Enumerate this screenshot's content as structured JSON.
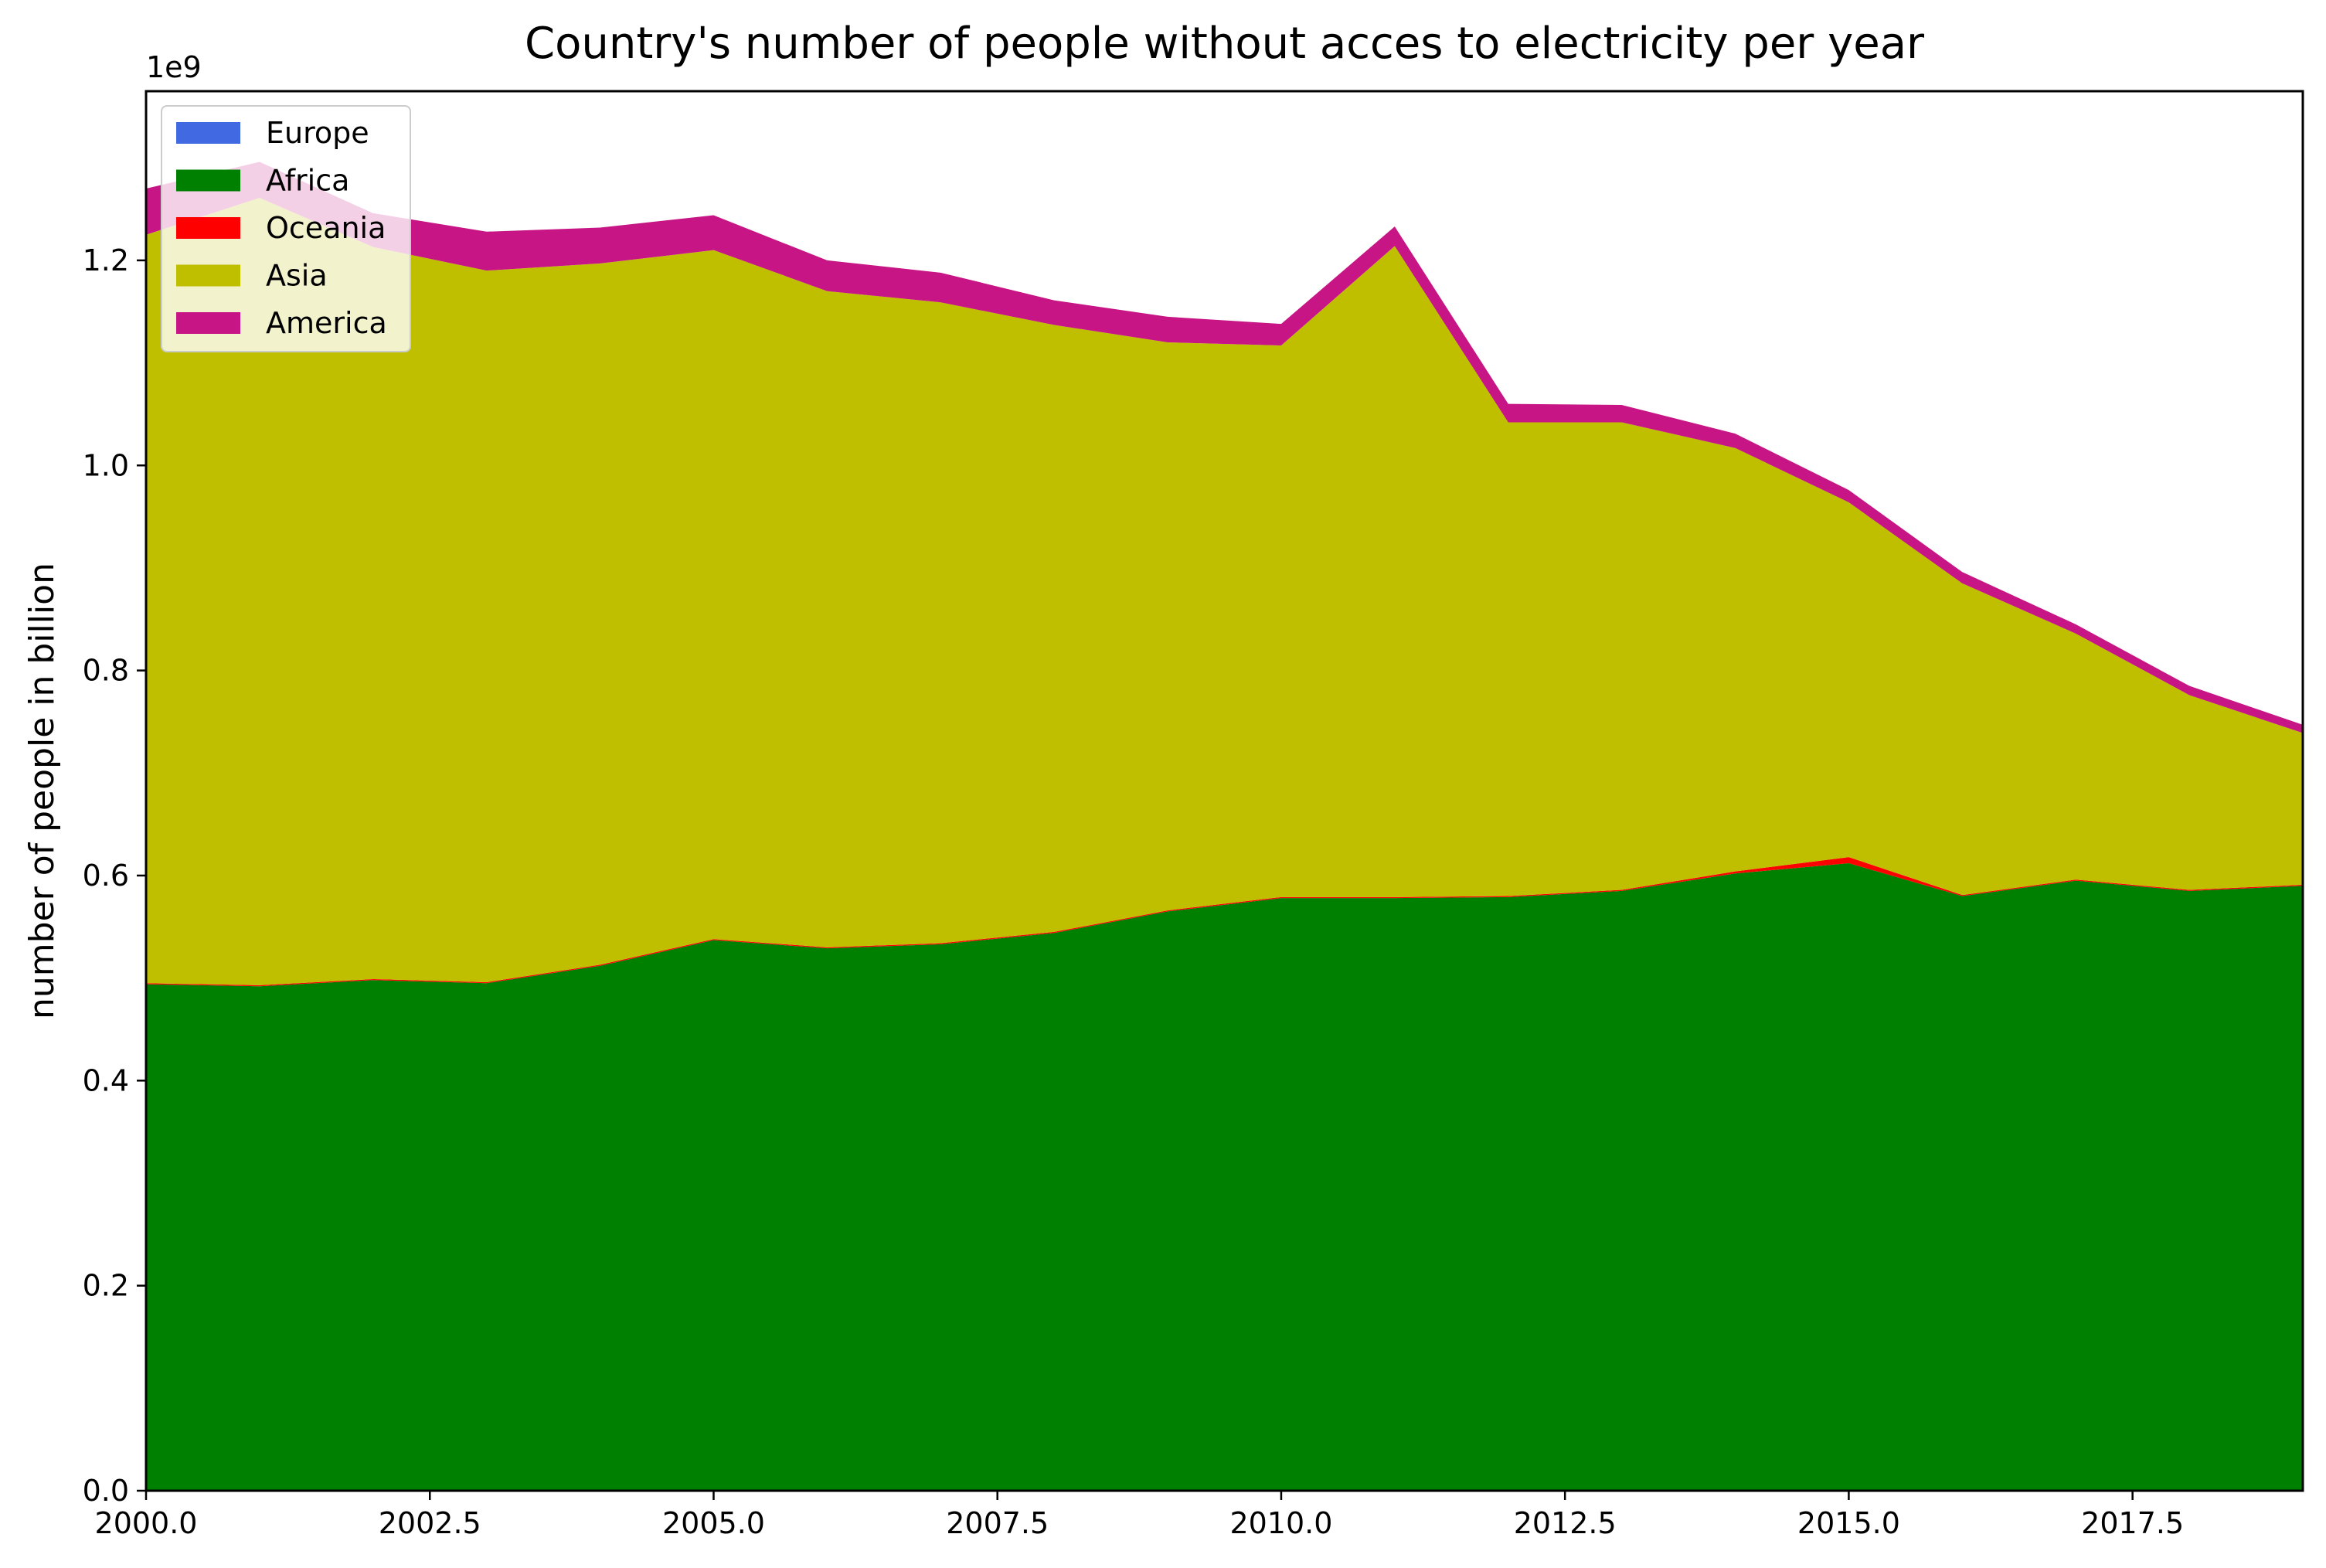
{
  "chart_data": {
    "type": "area",
    "title": "Country's number of people without acces to electricity per year",
    "xlabel": "",
    "ylabel": "number of people in billion",
    "y_offset_label": "1e9",
    "xlim": [
      2000,
      2019
    ],
    "ylim": [
      0,
      1.365
    ],
    "x_ticks": [
      2000.0,
      2002.5,
      2005.0,
      2007.5,
      2010.0,
      2012.5,
      2015.0,
      2017.5
    ],
    "x_tick_labels": [
      "2000.0",
      "2002.5",
      "2005.0",
      "2007.5",
      "2010.0",
      "2012.5",
      "2015.0",
      "2017.5"
    ],
    "y_ticks": [
      0.0,
      0.2,
      0.4,
      0.6,
      0.8,
      1.0,
      1.2
    ],
    "y_tick_labels": [
      "0.0",
      "0.2",
      "0.4",
      "0.6",
      "0.8",
      "1.0",
      "1.2"
    ],
    "grid": false,
    "legend_position": "top-left",
    "stacked": true,
    "x": [
      2000,
      2001,
      2002,
      2003,
      2004,
      2005,
      2006,
      2007,
      2008,
      2009,
      2010,
      2011,
      2012,
      2013,
      2014,
      2015,
      2016,
      2017,
      2018,
      2019
    ],
    "series": [
      {
        "name": "Europe",
        "color": "#4169e1",
        "values": [
          0,
          0,
          0,
          0,
          0,
          0,
          0,
          0,
          0,
          0,
          0,
          0,
          0,
          0,
          0,
          0,
          0,
          0,
          0,
          0
        ]
      },
      {
        "name": "Africa",
        "color": "#008000",
        "values": [
          0.494,
          0.492,
          0.498,
          0.495,
          0.512,
          0.537,
          0.529,
          0.533,
          0.544,
          0.565,
          0.578,
          0.578,
          0.579,
          0.585,
          0.602,
          0.612,
          0.58,
          0.595,
          0.585,
          0.59
        ]
      },
      {
        "name": "Oceania",
        "color": "#ff0000",
        "values": [
          0.001,
          0.001,
          0.001,
          0.001,
          0.001,
          0.001,
          0.001,
          0.001,
          0.001,
          0.001,
          0.001,
          0.001,
          0.001,
          0.001,
          0.002,
          0.006,
          0.001,
          0.001,
          0.001,
          0.001
        ]
      },
      {
        "name": "Asia",
        "color": "#bfbf00",
        "values": [
          0.73,
          0.768,
          0.714,
          0.694,
          0.684,
          0.672,
          0.64,
          0.625,
          0.592,
          0.554,
          0.538,
          0.635,
          0.462,
          0.456,
          0.413,
          0.346,
          0.304,
          0.24,
          0.19,
          0.148
        ]
      },
      {
        "name": "America",
        "color": "#c71585",
        "values": [
          0.045,
          0.035,
          0.033,
          0.038,
          0.035,
          0.034,
          0.03,
          0.029,
          0.024,
          0.025,
          0.021,
          0.019,
          0.018,
          0.017,
          0.014,
          0.012,
          0.011,
          0.009,
          0.009,
          0.008
        ]
      }
    ]
  }
}
